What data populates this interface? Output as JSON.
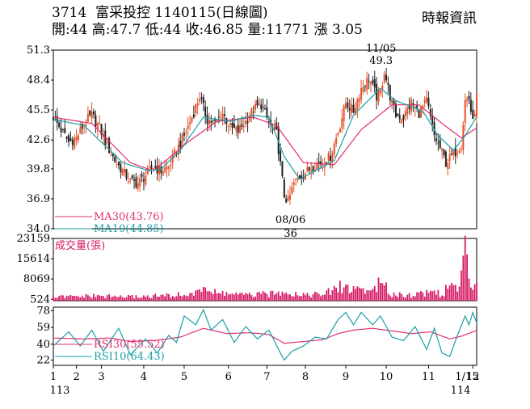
{
  "header": {
    "code": "3714",
    "name": "富采投控",
    "date": "1140115",
    "chart_kind": "(日線圖)",
    "source": "時報資訊",
    "open_label": "開:",
    "open": "44",
    "high_label": "高:",
    "high": "47.7",
    "low_label": "低:",
    "low": "44",
    "close_label": "收:",
    "close": "46.85",
    "volume_label": "量:",
    "volume": "11771",
    "change_label": "漲",
    "change": "3.05"
  },
  "chart_data": [
    {
      "type": "candlestick",
      "panel": "price",
      "ylim": [
        34.0,
        51.3
      ],
      "yticks": [
        "51.3",
        "48.4",
        "45.5",
        "42.6",
        "39.8",
        "36.9",
        "34.0"
      ],
      "x_months": [
        "1",
        "2",
        "3",
        "4",
        "5",
        "6",
        "7",
        "8",
        "9",
        "10",
        "11",
        "12",
        "1/15"
      ],
      "x_year_start": "113",
      "x_year_end": "114",
      "close_path": [
        [
          0,
          44.8
        ],
        [
          4,
          43.6
        ],
        [
          8,
          42.4
        ],
        [
          12,
          42.8
        ],
        [
          16,
          44.2
        ],
        [
          20,
          45.0
        ],
        [
          24,
          43.8
        ],
        [
          28,
          42.0
        ],
        [
          32,
          40.6
        ],
        [
          36,
          39.6
        ],
        [
          40,
          38.6
        ],
        [
          44,
          38.4
        ],
        [
          48,
          39.2
        ],
        [
          52,
          40.0
        ],
        [
          56,
          39.6
        ],
        [
          60,
          40.0
        ],
        [
          64,
          41.6
        ],
        [
          68,
          43.0
        ],
        [
          72,
          44.8
        ],
        [
          76,
          46.8
        ],
        [
          80,
          44.6
        ],
        [
          84,
          44.2
        ],
        [
          88,
          45.2
        ],
        [
          92,
          43.8
        ],
        [
          96,
          43.4
        ],
        [
          100,
          44.4
        ],
        [
          104,
          45.6
        ],
        [
          108,
          46.0
        ],
        [
          112,
          44.2
        ],
        [
          116,
          43.2
        ],
        [
          120,
          37.2
        ],
        [
          122,
          36.6
        ],
        [
          125,
          38.4
        ],
        [
          128,
          39.0
        ],
        [
          132,
          39.6
        ],
        [
          136,
          40.2
        ],
        [
          140,
          40.4
        ],
        [
          144,
          41.0
        ],
        [
          148,
          43.4
        ],
        [
          152,
          46.2
        ],
        [
          156,
          45.4
        ],
        [
          160,
          47.6
        ],
        [
          164,
          48.6
        ],
        [
          168,
          46.8
        ],
        [
          170,
          47.2
        ],
        [
          172,
          49.3
        ],
        [
          175,
          46.8
        ],
        [
          178,
          45.0
        ],
        [
          182,
          44.8
        ],
        [
          186,
          46.2
        ],
        [
          190,
          45.2
        ],
        [
          194,
          46.4
        ],
        [
          198,
          43.0
        ],
        [
          202,
          41.4
        ],
        [
          204,
          40.4
        ],
        [
          208,
          41.2
        ],
        [
          212,
          42.2
        ],
        [
          214,
          46.4
        ],
        [
          216,
          46.6
        ],
        [
          218,
          44.2
        ],
        [
          220,
          46.85
        ]
      ],
      "ma30": [
        [
          0,
          44.8
        ],
        [
          20,
          44.2
        ],
        [
          40,
          40.4
        ],
        [
          52,
          39.6
        ],
        [
          70,
          42.4
        ],
        [
          85,
          44.4
        ],
        [
          104,
          44.8
        ],
        [
          116,
          44.0
        ],
        [
          130,
          40.4
        ],
        [
          146,
          40.2
        ],
        [
          160,
          43.6
        ],
        [
          176,
          46.0
        ],
        [
          190,
          46.0
        ],
        [
          202,
          44.2
        ],
        [
          212,
          42.8
        ],
        [
          220,
          43.76
        ]
      ],
      "ma10": [
        [
          0,
          44.6
        ],
        [
          16,
          44.0
        ],
        [
          36,
          40.4
        ],
        [
          50,
          39.6
        ],
        [
          56,
          39.8
        ],
        [
          66,
          41.6
        ],
        [
          78,
          44.8
        ],
        [
          92,
          44.4
        ],
        [
          104,
          45.0
        ],
        [
          112,
          44.8
        ],
        [
          120,
          41.0
        ],
        [
          128,
          38.8
        ],
        [
          138,
          39.8
        ],
        [
          146,
          40.6
        ],
        [
          156,
          45.0
        ],
        [
          170,
          47.6
        ],
        [
          178,
          46.4
        ],
        [
          192,
          45.4
        ],
        [
          200,
          43.0
        ],
        [
          208,
          41.6
        ],
        [
          214,
          43.0
        ],
        [
          220,
          44.85
        ]
      ],
      "annotations": [
        {
          "date": "11/05",
          "value": "49.3",
          "x": 172
        },
        {
          "date": "08/06",
          "value": "36",
          "x": 122
        }
      ],
      "legend": [
        {
          "label": "MA30(43.76)",
          "color": "#e0306f"
        },
        {
          "label": "MA10(44.85)",
          "color": "#1a9fa6"
        }
      ]
    },
    {
      "type": "bar",
      "panel": "volume",
      "title": "成交量(張)",
      "ylim": [
        0,
        23159
      ],
      "yticks": [
        "23159",
        "15614",
        "8069",
        "524"
      ],
      "peaks": [
        [
          0,
          1800
        ],
        [
          20,
          2400
        ],
        [
          40,
          2000
        ],
        [
          60,
          2600
        ],
        [
          74,
          3500
        ],
        [
          78,
          8500
        ],
        [
          82,
          4000
        ],
        [
          90,
          3800
        ],
        [
          100,
          2800
        ],
        [
          108,
          3200
        ],
        [
          116,
          3500
        ],
        [
          120,
          6200
        ],
        [
          124,
          3600
        ],
        [
          140,
          3000
        ],
        [
          150,
          7400
        ],
        [
          156,
          5600
        ],
        [
          158,
          6900
        ],
        [
          164,
          4600
        ],
        [
          168,
          8400
        ],
        [
          172,
          7100
        ],
        [
          176,
          3600
        ],
        [
          186,
          2800
        ],
        [
          198,
          5000
        ],
        [
          202,
          3200
        ],
        [
          208,
          9800
        ],
        [
          210,
          3900
        ],
        [
          214,
          23159
        ],
        [
          216,
          12400
        ],
        [
          218,
          7500
        ],
        [
          220,
          11771
        ]
      ],
      "color": "#d61a64"
    },
    {
      "type": "line",
      "panel": "rsi",
      "ylim": [
        16,
        82
      ],
      "yticks": [
        "78",
        "59",
        "40",
        "22"
      ],
      "rsi30": [
        [
          0,
          47
        ],
        [
          16,
          46
        ],
        [
          30,
          47
        ],
        [
          40,
          43
        ],
        [
          52,
          44
        ],
        [
          66,
          48
        ],
        [
          78,
          58
        ],
        [
          90,
          52
        ],
        [
          102,
          53
        ],
        [
          112,
          51
        ],
        [
          120,
          41
        ],
        [
          130,
          43
        ],
        [
          140,
          45
        ],
        [
          148,
          52
        ],
        [
          156,
          56
        ],
        [
          166,
          58
        ],
        [
          176,
          55
        ],
        [
          186,
          52
        ],
        [
          196,
          54
        ],
        [
          206,
          46
        ],
        [
          212,
          49
        ],
        [
          220,
          55.52
        ]
      ],
      "rsi10": [
        [
          0,
          38
        ],
        [
          8,
          54
        ],
        [
          14,
          38
        ],
        [
          20,
          56
        ],
        [
          26,
          32
        ],
        [
          34,
          58
        ],
        [
          40,
          28
        ],
        [
          48,
          46
        ],
        [
          54,
          30
        ],
        [
          60,
          50
        ],
        [
          64,
          42
        ],
        [
          68,
          72
        ],
        [
          74,
          62
        ],
        [
          78,
          79
        ],
        [
          82,
          56
        ],
        [
          88,
          68
        ],
        [
          94,
          42
        ],
        [
          100,
          60
        ],
        [
          106,
          46
        ],
        [
          112,
          56
        ],
        [
          118,
          30
        ],
        [
          120,
          22
        ],
        [
          124,
          32
        ],
        [
          130,
          38
        ],
        [
          136,
          48
        ],
        [
          142,
          46
        ],
        [
          148,
          68
        ],
        [
          152,
          76
        ],
        [
          156,
          62
        ],
        [
          160,
          76
        ],
        [
          166,
          62
        ],
        [
          170,
          72
        ],
        [
          176,
          48
        ],
        [
          182,
          44
        ],
        [
          188,
          60
        ],
        [
          194,
          34
        ],
        [
          198,
          58
        ],
        [
          202,
          30
        ],
        [
          206,
          26
        ],
        [
          210,
          50
        ],
        [
          214,
          72
        ],
        [
          216,
          62
        ],
        [
          218,
          76
        ],
        [
          220,
          64.43
        ]
      ],
      "legend": [
        {
          "label": "RSI30(55.52)",
          "color": "#e0306f"
        },
        {
          "label": "RSI10(64.43)",
          "color": "#1a9fa6"
        }
      ]
    }
  ]
}
